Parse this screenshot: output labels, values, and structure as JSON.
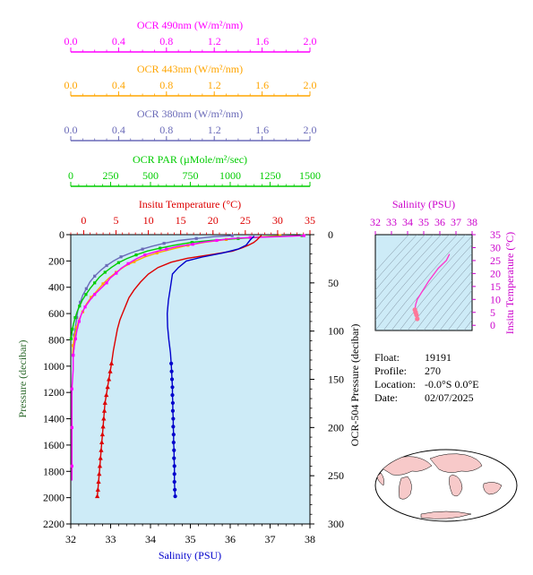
{
  "colors": {
    "ocr490": "#ff00ff",
    "ocr443": "#ffa500",
    "ocr380": "#6a6ab8",
    "par": "#00cc00",
    "temperature": "#dd0000",
    "salinity": "#0000cc",
    "pressure_axis": "#2e6b2e",
    "plot_bg": "#cdebf7",
    "ts_line": "#ff33cc",
    "ts_marker": "#ff7799",
    "map_land": "#f7c9c9"
  },
  "top_axes": [
    {
      "key": "ocr490",
      "label": "OCR 490nm (W/m²/nm)",
      "range": [
        0,
        2.0
      ],
      "ticks": [
        "0.0",
        "0.4",
        "0.8",
        "1.2",
        "1.6",
        "2.0"
      ],
      "tick_values": [
        0,
        0.4,
        0.8,
        1.2,
        1.6,
        2.0
      ]
    },
    {
      "key": "ocr443",
      "label": "OCR 443nm (W/m²/nm)",
      "range": [
        0,
        2.0
      ],
      "ticks": [
        "0.0",
        "0.4",
        "0.8",
        "1.2",
        "1.6",
        "2.0"
      ],
      "tick_values": [
        0,
        0.4,
        0.8,
        1.2,
        1.6,
        2.0
      ]
    },
    {
      "key": "ocr380",
      "label": "OCR 380nm (W/m²/nm)",
      "range": [
        0,
        2.0
      ],
      "ticks": [
        "0.0",
        "0.4",
        "0.8",
        "1.2",
        "1.6",
        "2.0"
      ],
      "tick_values": [
        0,
        0.4,
        0.8,
        1.2,
        1.6,
        2.0
      ]
    },
    {
      "key": "par",
      "label": "OCR PAR (µMole/m²/sec)",
      "range": [
        0,
        1500
      ],
      "ticks": [
        "0",
        "250",
        "500",
        "750",
        "1000",
        "1250",
        "1500"
      ],
      "tick_values": [
        0,
        250,
        500,
        750,
        1000,
        1250,
        1500
      ]
    }
  ],
  "temperature_axis": {
    "label": "Insitu Temperature (°C)",
    "range": [
      -2,
      35
    ],
    "ticks": [
      "0",
      "5",
      "10",
      "15",
      "20",
      "25",
      "30",
      "35"
    ],
    "tick_values": [
      0,
      5,
      10,
      15,
      20,
      25,
      30,
      35
    ]
  },
  "salinity_axis": {
    "label": "Salinity (PSU)",
    "range": [
      32,
      38
    ],
    "ticks": [
      "32",
      "33",
      "34",
      "35",
      "36",
      "37",
      "38"
    ],
    "tick_values": [
      32,
      33,
      34,
      35,
      36,
      37,
      38
    ]
  },
  "pressure_axis": {
    "label": "Pressure (decibar)",
    "range": [
      0,
      2200
    ],
    "ticks": [
      "0",
      "200",
      "400",
      "600",
      "800",
      "1000",
      "1200",
      "1400",
      "1600",
      "1800",
      "2000",
      "2200"
    ],
    "tick_values": [
      0,
      200,
      400,
      600,
      800,
      1000,
      1200,
      1400,
      1600,
      1800,
      2000,
      2200
    ]
  },
  "ocr_pressure_axis": {
    "label": "OCR-504 Pressure (decibar)",
    "range": [
      0,
      300
    ],
    "ticks": [
      "0",
      "50",
      "100",
      "150",
      "200",
      "250",
      "300"
    ],
    "tick_values": [
      0,
      50,
      100,
      150,
      200,
      250,
      300
    ]
  },
  "chart_data": [
    {
      "type": "line",
      "series": [
        {
          "name": "Insitu Temperature",
          "color_key": "temperature",
          "x_axis": "temperature",
          "y_axis": "pressure",
          "points": [
            [
              27.5,
              5
            ],
            [
              27.2,
              20
            ],
            [
              26.8,
              40
            ],
            [
              26.3,
              60
            ],
            [
              25.5,
              80
            ],
            [
              24.5,
              100
            ],
            [
              23,
              125
            ],
            [
              20,
              150
            ],
            [
              16,
              180
            ],
            [
              13.5,
              210
            ],
            [
              11.5,
              250
            ],
            [
              10,
              300
            ],
            [
              8.8,
              360
            ],
            [
              7.8,
              420
            ],
            [
              7,
              480
            ],
            [
              6.5,
              540
            ],
            [
              6,
              600
            ],
            [
              5.6,
              650
            ],
            [
              5.2,
              720
            ],
            [
              4.9,
              800
            ],
            [
              4.6,
              880
            ],
            [
              4.3,
              980
            ]
          ],
          "marked_points": [
            [
              4.3,
              980
            ],
            [
              4.1,
              1040
            ],
            [
              3.9,
              1100
            ],
            [
              3.7,
              1160
            ],
            [
              3.5,
              1220
            ],
            [
              3.3,
              1280
            ],
            [
              3.2,
              1340
            ],
            [
              3.1,
              1400
            ],
            [
              3,
              1460
            ],
            [
              2.9,
              1520
            ],
            [
              2.8,
              1580
            ],
            [
              2.7,
              1640
            ],
            [
              2.6,
              1700
            ],
            [
              2.5,
              1760
            ],
            [
              2.4,
              1820
            ],
            [
              2.3,
              1880
            ],
            [
              2.2,
              1940
            ],
            [
              2.1,
              1990
            ]
          ]
        },
        {
          "name": "Salinity",
          "color_key": "salinity",
          "x_axis": "salinity",
          "y_axis": "pressure",
          "points": [
            [
              36.6,
              10
            ],
            [
              36.5,
              40
            ],
            [
              36.4,
              80
            ],
            [
              36.2,
              110
            ],
            [
              35.8,
              140
            ],
            [
              35.3,
              170
            ],
            [
              34.9,
              200
            ],
            [
              34.7,
              250
            ],
            [
              34.55,
              300
            ],
            [
              34.5,
              400
            ],
            [
              34.45,
              500
            ],
            [
              34.42,
              600
            ],
            [
              34.43,
              700
            ],
            [
              34.46,
              800
            ],
            [
              34.5,
              900
            ],
            [
              34.52,
              980
            ]
          ],
          "marked_points": [
            [
              34.52,
              980
            ],
            [
              34.53,
              1040
            ],
            [
              34.54,
              1100
            ],
            [
              34.55,
              1160
            ],
            [
              34.55,
              1220
            ],
            [
              34.56,
              1280
            ],
            [
              34.56,
              1340
            ],
            [
              34.57,
              1400
            ],
            [
              34.57,
              1460
            ],
            [
              34.58,
              1520
            ],
            [
              34.58,
              1580
            ],
            [
              34.59,
              1640
            ],
            [
              34.59,
              1700
            ],
            [
              34.6,
              1760
            ],
            [
              34.6,
              1820
            ],
            [
              34.6,
              1880
            ],
            [
              34.61,
              1940
            ],
            [
              34.62,
              1990
            ]
          ]
        },
        {
          "name": "OCR 490nm",
          "color_key": "ocr490",
          "x_axis": "ocr490",
          "y_axis": "ocr_pressure",
          "points": [
            [
              1.95,
              1
            ],
            [
              1.75,
              2
            ],
            [
              1.5,
              3
            ],
            [
              1.35,
              4
            ],
            [
              1.22,
              6
            ],
            [
              1.1,
              8
            ],
            [
              1.02,
              10
            ],
            [
              0.9,
              12
            ],
            [
              0.8,
              15
            ],
            [
              0.7,
              18
            ],
            [
              0.62,
              21
            ],
            [
              0.55,
              25
            ],
            [
              0.48,
              30
            ],
            [
              0.42,
              35
            ],
            [
              0.38,
              40
            ],
            [
              0.33,
              45
            ],
            [
              0.3,
              50
            ],
            [
              0.25,
              56
            ],
            [
              0.2,
              62
            ],
            [
              0.16,
              68
            ],
            [
              0.12,
              75
            ],
            [
              0.09,
              82
            ],
            [
              0.07,
              90
            ],
            [
              0.05,
              100
            ],
            [
              0.04,
              108
            ],
            [
              0.03,
              115
            ],
            [
              0.02,
              125
            ],
            [
              0.02,
              140
            ],
            [
              0.01,
              160
            ],
            [
              0.01,
              180
            ],
            [
              0.01,
              200
            ],
            [
              0.01,
              220
            ],
            [
              0.01,
              240
            ],
            [
              0.01,
              255
            ]
          ]
        },
        {
          "name": "OCR 443nm",
          "color_key": "ocr443",
          "x_axis": "ocr443",
          "y_axis": "ocr_pressure",
          "points": [
            [
              1.75,
              1
            ],
            [
              1.5,
              3
            ],
            [
              1.3,
              5
            ],
            [
              1.12,
              8
            ],
            [
              0.98,
              11
            ],
            [
              0.85,
              15
            ],
            [
              0.72,
              19
            ],
            [
              0.62,
              23
            ],
            [
              0.53,
              28
            ],
            [
              0.45,
              33
            ],
            [
              0.38,
              39
            ],
            [
              0.32,
              45
            ],
            [
              0.27,
              51
            ],
            [
              0.22,
              58
            ],
            [
              0.17,
              65
            ],
            [
              0.13,
              72
            ],
            [
              0.1,
              80
            ],
            [
              0.07,
              88
            ],
            [
              0.05,
              96
            ],
            [
              0.03,
              105
            ],
            [
              0.02,
              115
            ],
            [
              0.015,
              125
            ]
          ]
        },
        {
          "name": "OCR 380nm",
          "color_key": "ocr380",
          "x_axis": "ocr380",
          "y_axis": "ocr_pressure",
          "points": [
            [
              1.35,
              1
            ],
            [
              1.2,
              2
            ],
            [
              1.05,
              4
            ],
            [
              0.9,
              6
            ],
            [
              0.78,
              9
            ],
            [
              0.68,
              12
            ],
            [
              0.6,
              15
            ],
            [
              0.5,
              19
            ],
            [
              0.42,
              23
            ],
            [
              0.36,
              27
            ],
            [
              0.3,
              32
            ],
            [
              0.25,
              37
            ],
            [
              0.2,
              43
            ],
            [
              0.16,
              49
            ],
            [
              0.13,
              56
            ],
            [
              0.1,
              63
            ],
            [
              0.08,
              70
            ],
            [
              0.06,
              78
            ],
            [
              0.05,
              86
            ],
            [
              0.04,
              95
            ],
            [
              0.03,
              104
            ],
            [
              0.03,
              114
            ],
            [
              0.02,
              125
            ]
          ]
        },
        {
          "name": "OCR PAR",
          "color_key": "par",
          "x_axis": "par",
          "y_axis": "ocr_pressure",
          "points": [
            [
              1450,
              1
            ],
            [
              1250,
              2
            ],
            [
              1050,
              4
            ],
            [
              880,
              6
            ],
            [
              760,
              8
            ],
            [
              650,
              11
            ],
            [
              560,
              14
            ],
            [
              480,
              17
            ],
            [
              410,
              21
            ],
            [
              350,
              25
            ],
            [
              300,
              29
            ],
            [
              255,
              34
            ],
            [
              215,
              39
            ],
            [
              180,
              44
            ],
            [
              150,
              50
            ],
            [
              120,
              56
            ],
            [
              95,
              62
            ],
            [
              72,
              68
            ],
            [
              55,
              74
            ],
            [
              40,
              80
            ],
            [
              28,
              86
            ],
            [
              18,
              92
            ],
            [
              10,
              98
            ],
            [
              5,
              104
            ],
            [
              2,
              108
            ]
          ]
        }
      ]
    },
    {
      "type": "line",
      "title": "Salinity (PSU)",
      "xlabel": "Salinity (PSU)",
      "ylabel": "Insitu Temperature (°C)",
      "x_ticks": [
        "32",
        "33",
        "34",
        "35",
        "36",
        "37",
        "38"
      ],
      "x_tick_values": [
        32,
        33,
        34,
        35,
        36,
        37,
        38
      ],
      "y_ticks": [
        "0",
        "5",
        "10",
        "15",
        "20",
        "25",
        "30",
        "35"
      ],
      "y_tick_values": [
        0,
        5,
        10,
        15,
        20,
        25,
        30,
        35
      ],
      "xlim": [
        32,
        38
      ],
      "ylim": [
        -2,
        35
      ],
      "series": [
        {
          "name": "T-S",
          "points": [
            [
              36.6,
              27.5
            ],
            [
              36.4,
              25
            ],
            [
              35.9,
              22
            ],
            [
              35.3,
              17
            ],
            [
              34.9,
              13
            ],
            [
              34.6,
              10
            ],
            [
              34.5,
              8
            ],
            [
              34.45,
              6
            ],
            [
              34.5,
              5
            ],
            [
              34.55,
              4
            ],
            [
              34.6,
              2.5
            ]
          ]
        }
      ]
    }
  ],
  "info": {
    "float_label": "Float:",
    "float_value": "19191",
    "profile_label": "Profile:",
    "profile_value": "270",
    "location_label": "Location:",
    "location_value": "-0.0°S   0.0°E",
    "date_label": "Date:",
    "date_value": "02/07/2025"
  }
}
